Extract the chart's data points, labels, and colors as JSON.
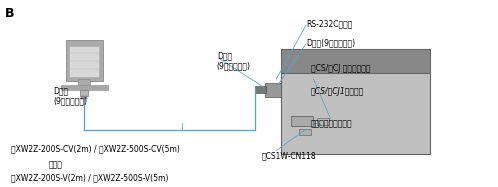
{
  "background_color": "#ffffff",
  "label_B": "B",
  "line_color": "#4da6c8",
  "text_color": "#000000",
  "font_size": 5.5,
  "label_dsub_female_bottom": "Dサブ\n(9ピン・メス)",
  "label_dsub_male": "Dサブ\n(9ピン・オス)",
  "label_rs232c": "RS-232Cポート",
  "label_dsub_female_top": "Dサブ(9ピン・メス)",
  "label_peripheral": "形CS/形CJ ペリフェラル",
  "label_series": "形CS/形CJ1シリーズ",
  "label_peripheral_port": "ペリフェラルポート",
  "label_cn118": "形CS1W-CN118",
  "label_cable1": "形XW2Z-200S-CV(2m) / 形XW2Z-500S-CV(5m)",
  "label_or": "または",
  "label_cable2": "形XW2Z-200S-V(2m) / 形XW2Z-500S-V(5m)"
}
